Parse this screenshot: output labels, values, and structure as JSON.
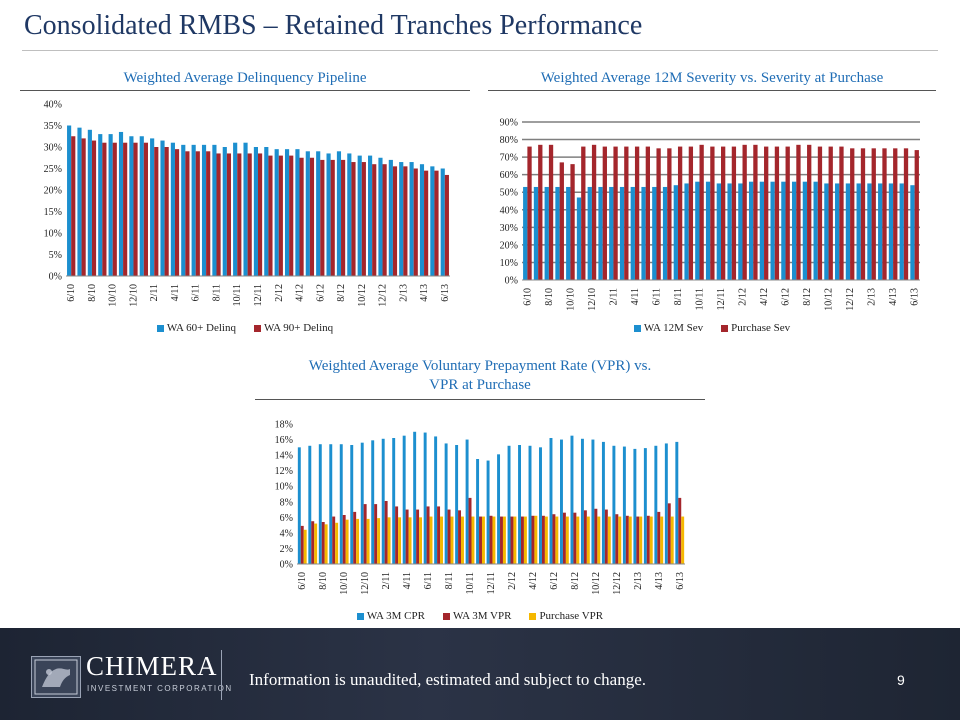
{
  "page": {
    "title": "Consolidated RMBS – Retained Tranches Performance",
    "disclaimer": "Information is unaudited, estimated and subject to change.",
    "page_number": "9",
    "logo": {
      "name": "CHIMERA",
      "tagline": "INVESTMENT CORPORATION",
      "mark": "chimera-logo-icon"
    }
  },
  "colors": {
    "blue": "#1c8fcf",
    "red": "#a4262c",
    "yellow": "#f5b800",
    "title": "#1f3864",
    "subtitle": "#1f6db5"
  },
  "chart_data": [
    {
      "id": "delinquency",
      "type": "bar",
      "title": "Weighted Average Delinquency Pipeline",
      "xlabel": "",
      "ylabel": "",
      "ylim": [
        0,
        40
      ],
      "y_ticks": [
        "0%",
        "5%",
        "10%",
        "15%",
        "20%",
        "25%",
        "30%",
        "35%",
        "40%"
      ],
      "grid": false,
      "legend_position": "bottom",
      "categories": [
        "6/10",
        "7/10",
        "8/10",
        "9/10",
        "10/10",
        "11/10",
        "12/10",
        "1/11",
        "2/11",
        "3/11",
        "4/11",
        "5/11",
        "6/11",
        "7/11",
        "8/11",
        "9/11",
        "10/11",
        "11/11",
        "12/11",
        "1/12",
        "2/12",
        "3/12",
        "4/12",
        "5/12",
        "6/12",
        "7/12",
        "8/12",
        "9/12",
        "10/12",
        "11/12",
        "12/12",
        "1/13",
        "2/13",
        "3/13",
        "4/13",
        "5/13",
        "6/13"
      ],
      "category_labels": [
        "6/10",
        "8/10",
        "10/10",
        "12/10",
        "2/11",
        "4/11",
        "6/11",
        "8/11",
        "10/11",
        "12/11",
        "2/12",
        "4/12",
        "6/12",
        "8/12",
        "10/12",
        "12/12",
        "2/13",
        "4/13",
        "6/13"
      ],
      "series": [
        {
          "name": "WA 60+ Delinq",
          "color": "#1c8fcf",
          "values": [
            35.0,
            34.5,
            34.0,
            33.0,
            33.0,
            33.5,
            32.5,
            32.5,
            32.0,
            31.5,
            31.0,
            30.5,
            30.5,
            30.5,
            30.5,
            30.0,
            31.0,
            31.0,
            30.0,
            30.0,
            29.5,
            29.5,
            29.5,
            29.0,
            29.0,
            28.5,
            29.0,
            28.5,
            28.0,
            28.0,
            27.5,
            27.0,
            26.5,
            26.5,
            26.0,
            25.5,
            25.0
          ]
        },
        {
          "name": "WA 90+ Delinq",
          "color": "#a4262c",
          "values": [
            32.5,
            32.0,
            31.5,
            31.0,
            31.0,
            31.0,
            31.0,
            31.0,
            30.0,
            30.0,
            29.5,
            29.0,
            29.0,
            29.0,
            28.5,
            28.5,
            28.5,
            28.5,
            28.5,
            28.0,
            28.0,
            28.0,
            27.5,
            27.5,
            27.0,
            27.0,
            27.0,
            26.5,
            26.5,
            26.0,
            26.0,
            25.5,
            25.5,
            25.0,
            24.5,
            24.5,
            23.5
          ]
        }
      ]
    },
    {
      "id": "severity",
      "type": "bar",
      "title": "Weighted Average 12M Severity vs. Severity at Purchase",
      "xlabel": "",
      "ylabel": "",
      "ylim": [
        0,
        90
      ],
      "y_ticks": [
        "0%",
        "10%",
        "20%",
        "30%",
        "40%",
        "50%",
        "60%",
        "70%",
        "80%",
        "90%"
      ],
      "grid": true,
      "legend_position": "bottom",
      "categories": [
        "6/10",
        "7/10",
        "8/10",
        "9/10",
        "10/10",
        "11/10",
        "12/10",
        "1/11",
        "2/11",
        "3/11",
        "4/11",
        "5/11",
        "6/11",
        "7/11",
        "8/11",
        "9/11",
        "10/11",
        "11/11",
        "12/11",
        "1/12",
        "2/12",
        "3/12",
        "4/12",
        "5/12",
        "6/12",
        "7/12",
        "8/12",
        "9/12",
        "10/12",
        "11/12",
        "12/12",
        "1/13",
        "2/13",
        "3/13",
        "4/13",
        "5/13",
        "6/13"
      ],
      "category_labels": [
        "6/10",
        "8/10",
        "10/10",
        "12/10",
        "2/11",
        "4/11",
        "6/11",
        "8/11",
        "10/11",
        "12/11",
        "2/12",
        "4/12",
        "6/12",
        "8/12",
        "10/12",
        "12/12",
        "2/13",
        "4/13",
        "6/13"
      ],
      "series": [
        {
          "name": "WA 12M Sev",
          "color": "#1c8fcf",
          "values": [
            53,
            53,
            53,
            53,
            53,
            47,
            53,
            53,
            53,
            53,
            53,
            53,
            53,
            53,
            54,
            55,
            56,
            56,
            55,
            55,
            55,
            56,
            56,
            56,
            56,
            56,
            56,
            56,
            55,
            55,
            55,
            55,
            55,
            55,
            55,
            55,
            54
          ]
        },
        {
          "name": "Purchase Sev",
          "color": "#a4262c",
          "values": [
            76,
            77,
            77,
            67,
            66,
            76,
            77,
            76,
            76,
            76,
            76,
            76,
            75,
            75,
            76,
            76,
            77,
            76,
            76,
            76,
            77,
            77,
            76,
            76,
            76,
            77,
            77,
            76,
            76,
            76,
            75,
            75,
            75,
            75,
            75,
            75,
            74
          ]
        }
      ]
    },
    {
      "id": "prepayment",
      "type": "bar",
      "title": "Weighted Average Voluntary Prepayment Rate (VPR) vs. VPR at Purchase",
      "title_lines": [
        "Weighted Average Voluntary Prepayment Rate (VPR) vs.",
        "VPR at Purchase"
      ],
      "xlabel": "",
      "ylabel": "",
      "ylim": [
        0,
        18
      ],
      "y_ticks": [
        "0%",
        "2%",
        "4%",
        "6%",
        "8%",
        "10%",
        "12%",
        "14%",
        "16%",
        "18%"
      ],
      "grid": false,
      "legend_position": "bottom",
      "categories": [
        "6/10",
        "7/10",
        "8/10",
        "9/10",
        "10/10",
        "11/10",
        "12/10",
        "1/11",
        "2/11",
        "3/11",
        "4/11",
        "5/11",
        "6/11",
        "7/11",
        "8/11",
        "9/11",
        "10/11",
        "11/11",
        "12/11",
        "1/12",
        "2/12",
        "3/12",
        "4/12",
        "5/12",
        "6/12",
        "7/12",
        "8/12",
        "9/12",
        "10/12",
        "11/12",
        "12/12",
        "1/13",
        "2/13",
        "3/13",
        "4/13",
        "5/13",
        "6/13"
      ],
      "category_labels": [
        "6/10",
        "8/10",
        "10/10",
        "12/10",
        "2/11",
        "4/11",
        "6/11",
        "8/11",
        "10/11",
        "12/11",
        "2/12",
        "4/12",
        "6/12",
        "8/12",
        "10/12",
        "12/12",
        "2/13",
        "4/13",
        "6/13"
      ],
      "series": [
        {
          "name": "WA 3M CPR",
          "color": "#1c8fcf",
          "values": [
            15.0,
            15.2,
            15.4,
            15.4,
            15.4,
            15.3,
            15.6,
            15.9,
            16.1,
            16.2,
            16.5,
            17.0,
            16.9,
            16.4,
            15.5,
            15.3,
            16.0,
            13.5,
            13.3,
            14.1,
            15.2,
            15.3,
            15.2,
            15.0,
            16.2,
            16.0,
            16.5,
            16.1,
            16.0,
            15.7,
            15.2,
            15.1,
            14.8,
            14.9,
            15.2,
            15.5,
            15.7
          ]
        },
        {
          "name": "WA 3M VPR",
          "color": "#a4262c",
          "values": [
            4.9,
            5.5,
            5.4,
            6.1,
            6.3,
            6.7,
            7.7,
            7.7,
            8.1,
            7.4,
            7.0,
            7.0,
            7.4,
            7.4,
            7.0,
            6.9,
            8.5,
            6.1,
            6.2,
            6.1,
            6.1,
            6.1,
            6.2,
            6.2,
            6.4,
            6.6,
            6.6,
            6.9,
            7.1,
            7.0,
            6.4,
            6.2,
            6.1,
            6.2,
            6.7,
            7.8,
            8.5
          ]
        },
        {
          "name": "Purchase VPR",
          "color": "#f5b800",
          "values": [
            4.4,
            5.2,
            5.1,
            5.3,
            5.7,
            5.8,
            5.8,
            5.9,
            6.0,
            6.0,
            6.0,
            6.0,
            6.1,
            6.1,
            6.1,
            6.1,
            6.1,
            6.1,
            6.1,
            6.1,
            6.1,
            6.1,
            6.2,
            6.1,
            6.1,
            6.1,
            6.1,
            6.1,
            6.1,
            6.1,
            6.1,
            6.1,
            6.1,
            6.1,
            6.1,
            6.1,
            6.1
          ]
        }
      ]
    }
  ]
}
